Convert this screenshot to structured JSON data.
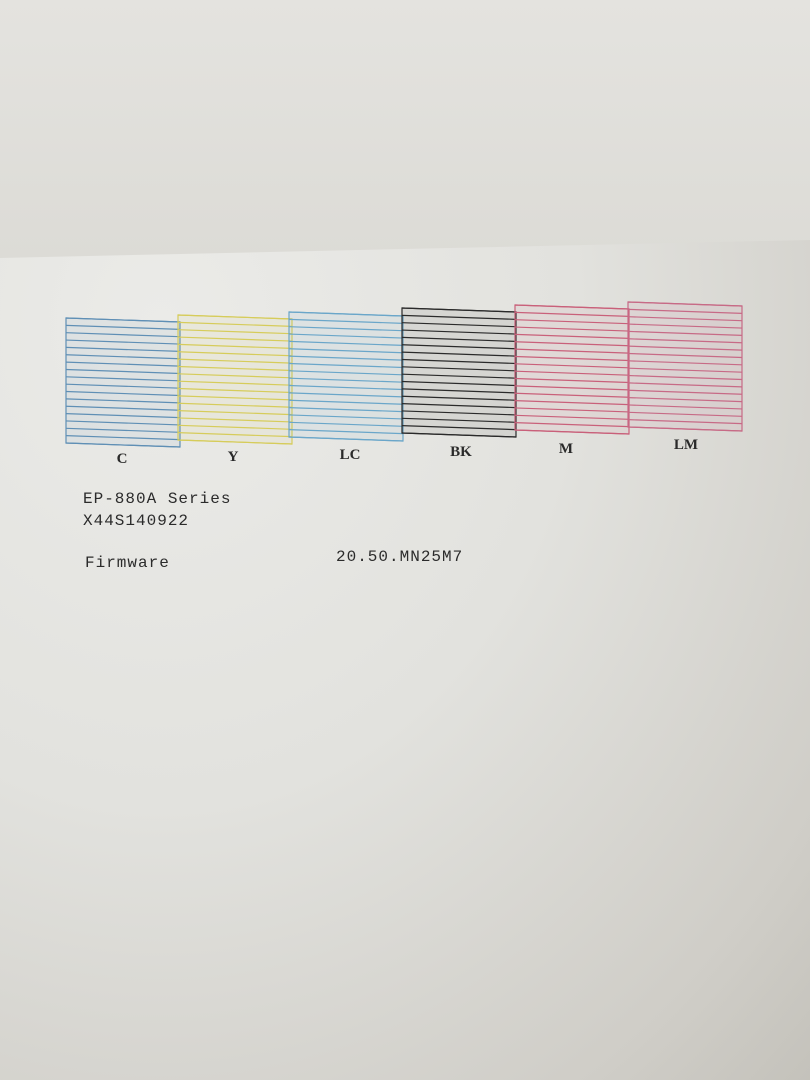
{
  "nozzle_check": {
    "patterns": [
      {
        "label": "C",
        "color": "#5f8fb5"
      },
      {
        "label": "Y",
        "color": "#d6cc5a"
      },
      {
        "label": "LC",
        "color": "#6aa6c9"
      },
      {
        "label": "BK",
        "color": "#2a2a2a"
      },
      {
        "label": "M",
        "color": "#c9607a"
      },
      {
        "label": "LM",
        "color": "#c76a86"
      }
    ]
  },
  "info": {
    "model": "EP-880A Series",
    "serial": "X44S140922",
    "firmware_label": "Firmware",
    "firmware_value": "20.50.MN25M7"
  }
}
